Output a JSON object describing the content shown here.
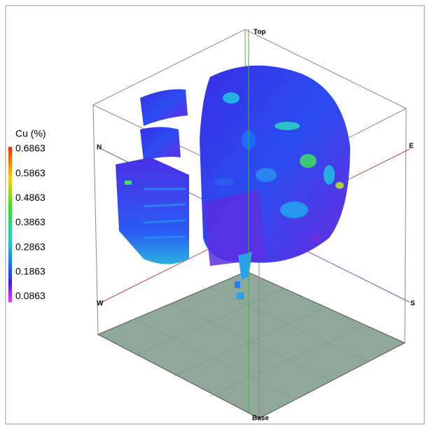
{
  "legend": {
    "title": "Cu (%)",
    "labels": [
      "0.6863",
      "0.5863",
      "0.4863",
      "0.3863",
      "0.2863",
      "0.1863",
      "0.0863"
    ]
  },
  "directions": {
    "top": "Top",
    "base": "Base",
    "north": "N",
    "east": "E",
    "south": "S",
    "west": "W"
  }
}
